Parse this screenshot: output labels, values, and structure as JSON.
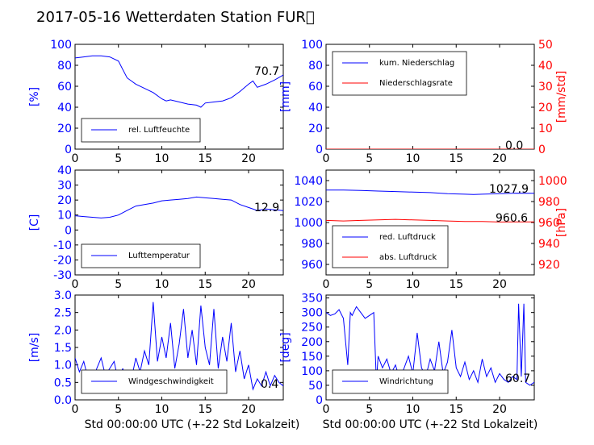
{
  "page_title": "2017-05-16 Wetterdaten Station FUR\u0000",
  "shared_xlabel": "Std 00:00:00 UTC (+-22 Std Lokalzeit)",
  "colors": {
    "blue": "#0000ff",
    "red": "#ff0000",
    "light_blue": "#8080ff"
  },
  "chart_data": [
    {
      "id": "humidity",
      "type": "line",
      "xlim": [
        0,
        24
      ],
      "ylim": [
        0,
        100
      ],
      "xticks": [
        "0",
        "5",
        "10",
        "15",
        "20"
      ],
      "yticks": [
        "0",
        "20",
        "40",
        "60",
        "80",
        "100"
      ],
      "ylabel": "[%]",
      "readout": "70.7",
      "series": [
        {
          "name": "rel. Luftfeuchte",
          "color": "#0000ff",
          "x": [
            0,
            1,
            2,
            3,
            4,
            5,
            5.5,
            6,
            6.5,
            7,
            8,
            9,
            10,
            10.5,
            11,
            12,
            13,
            14,
            14.5,
            15,
            16,
            17,
            18,
            19,
            20,
            20.5,
            21,
            22,
            23,
            24
          ],
          "y": [
            87,
            88,
            89,
            89,
            88,
            84,
            76,
            68,
            65,
            62,
            58,
            54,
            48,
            46,
            47,
            45,
            43,
            42,
            40,
            44,
            45,
            46,
            49,
            55,
            62,
            65,
            59,
            62,
            66,
            70.7
          ]
        }
      ]
    },
    {
      "id": "precip",
      "type": "line",
      "xlim": [
        0,
        24
      ],
      "ylim": [
        0,
        100
      ],
      "y2lim": [
        0,
        50
      ],
      "xticks": [
        "0",
        "5",
        "10",
        "15",
        "20"
      ],
      "yticks": [
        "0",
        "20",
        "40",
        "60",
        "80",
        "100"
      ],
      "y2ticks": [
        "0",
        "10",
        "20",
        "30",
        "40",
        "50"
      ],
      "ylabel": "[mm]",
      "y2label": "[mm/std]",
      "readout": "0.0",
      "series": [
        {
          "name": "kum. Niederschlag",
          "color": "#0000ff",
          "x": [
            0,
            24
          ],
          "y": [
            0,
            0
          ]
        },
        {
          "name": "Niederschlagsrate",
          "color": "#ff0000",
          "x": [
            0,
            24
          ],
          "y": [
            0,
            0
          ]
        }
      ]
    },
    {
      "id": "temperature",
      "type": "line",
      "xlim": [
        0,
        24
      ],
      "ylim": [
        -30,
        40
      ],
      "xticks": [
        "0",
        "5",
        "10",
        "15",
        "20"
      ],
      "yticks": [
        "-30",
        "-20",
        "-10",
        "0",
        "10",
        "20",
        "30",
        "40"
      ],
      "ylabel": "[C]",
      "readout": "12.9",
      "series": [
        {
          "name": "Lufttemperatur",
          "color": "#0000ff",
          "x": [
            0,
            1,
            2,
            3,
            4,
            5,
            6,
            7,
            8,
            9,
            10,
            11,
            12,
            13,
            14,
            15,
            16,
            17,
            18,
            19,
            20,
            21,
            22,
            23,
            24
          ],
          "y": [
            9.5,
            9,
            8.5,
            8,
            8.5,
            10,
            13,
            16,
            17,
            18,
            19.5,
            20,
            20.5,
            21,
            22,
            21.5,
            21,
            20.5,
            20,
            17,
            15,
            13,
            14,
            13.5,
            12.9
          ]
        }
      ]
    },
    {
      "id": "pressure",
      "type": "line",
      "xlim": [
        0,
        24
      ],
      "ylim": [
        950,
        1050
      ],
      "y2lim": [
        910,
        1010
      ],
      "xticks": [
        "0",
        "5",
        "10",
        "15",
        "20"
      ],
      "yticks": [
        "960",
        "980",
        "1000",
        "1020",
        "1040"
      ],
      "y2ticks": [
        "920",
        "940",
        "960",
        "980",
        "1000"
      ],
      "y2label": "[hPa]",
      "readout": "1027.9",
      "readout2": "960.6",
      "series": [
        {
          "name": "red. Luftdruck",
          "color": "#0000ff",
          "x": [
            0,
            2,
            4,
            6,
            8,
            10,
            12,
            14,
            16,
            17,
            18,
            20,
            22,
            24
          ],
          "y": [
            1031,
            1031,
            1030.5,
            1030,
            1029.5,
            1029,
            1028.5,
            1027.5,
            1027,
            1026.8,
            1027,
            1027.5,
            1028,
            1027.9
          ]
        },
        {
          "name": "abs. Luftdruck",
          "color": "#ff0000",
          "x": [
            0,
            2,
            4,
            6,
            8,
            10,
            12,
            14,
            16,
            18,
            20,
            22,
            24
          ],
          "y": [
            1002,
            1001.5,
            1002,
            1002.5,
            1003,
            1002.5,
            1002,
            1001.5,
            1001,
            1001,
            1000.5,
            1000.6,
            1000.6
          ]
        }
      ]
    },
    {
      "id": "wind_speed",
      "type": "line",
      "xlim": [
        0,
        24
      ],
      "ylim": [
        0,
        3.0
      ],
      "xticks": [
        "0",
        "5",
        "10",
        "15",
        "20"
      ],
      "yticks": [
        "0.0",
        "0.5",
        "1.0",
        "1.5",
        "2.0",
        "2.5",
        "3.0"
      ],
      "ylabel": "[m/s]",
      "xlabel": "Std 00:00:00 UTC (+-22 Std Lokalzeit)",
      "readout": "0.4",
      "series": [
        {
          "name": "Windgeschwindigkeit",
          "color": "#0000ff",
          "x": [
            0,
            0.5,
            1,
            1.5,
            2,
            2.5,
            3,
            3.5,
            4,
            4.5,
            5,
            5.5,
            6,
            6.5,
            7,
            7.5,
            8,
            8.5,
            9,
            9.5,
            10,
            10.5,
            11,
            11.5,
            12,
            12.5,
            13,
            13.5,
            14,
            14.5,
            15,
            15.5,
            16,
            16.5,
            17,
            17.5,
            18,
            18.5,
            19,
            19.5,
            20,
            20.5,
            21,
            21.5,
            22,
            22.5,
            23,
            23.5,
            24
          ],
          "y": [
            1.2,
            0.8,
            1.1,
            0.6,
            0.4,
            0.9,
            1.2,
            0.7,
            0.9,
            1.1,
            0.5,
            0.9,
            0.3,
            0.6,
            1.2,
            0.8,
            1.4,
            1.0,
            2.8,
            1.1,
            1.8,
            1.2,
            2.2,
            0.9,
            1.6,
            2.6,
            1.2,
            2.0,
            1.0,
            2.7,
            1.5,
            1.0,
            2.6,
            0.9,
            1.8,
            1.1,
            2.2,
            0.8,
            1.4,
            0.6,
            1.0,
            0.3,
            0.6,
            0.4,
            0.8,
            0.4,
            0.7,
            0.5,
            0.4
          ]
        }
      ]
    },
    {
      "id": "wind_dir",
      "type": "line",
      "xlim": [
        0,
        24
      ],
      "ylim": [
        0,
        360
      ],
      "xticks": [
        "0",
        "5",
        "10",
        "15",
        "20"
      ],
      "yticks": [
        "0",
        "50",
        "100",
        "150",
        "200",
        "250",
        "300",
        "350"
      ],
      "ylabel": "[deg]",
      "xlabel": "Std 00:00:00 UTC (+-22 Std Lokalzeit)",
      "readout": "60.7",
      "series": [
        {
          "name": "Windrichtung",
          "color": "#0000ff",
          "x": [
            0,
            0.5,
            1,
            1.5,
            2,
            2.5,
            2.8,
            3,
            3.5,
            4,
            4.5,
            5,
            5.5,
            5.8,
            6,
            6.5,
            7,
            7.5,
            8,
            8.5,
            9,
            9.5,
            10,
            10.5,
            11,
            11.5,
            12,
            12.5,
            13,
            13.5,
            14,
            14.5,
            15,
            15.5,
            16,
            16.5,
            17,
            17.5,
            18,
            18.5,
            19,
            19.5,
            20,
            20.5,
            21,
            21.5,
            22,
            22.2,
            22.5,
            22.8,
            23,
            23.5,
            24
          ],
          "y": [
            300,
            290,
            295,
            310,
            280,
            120,
            300,
            290,
            320,
            300,
            280,
            290,
            300,
            60,
            150,
            110,
            140,
            90,
            120,
            70,
            110,
            150,
            90,
            230,
            110,
            80,
            140,
            100,
            200,
            90,
            130,
            240,
            110,
            80,
            130,
            70,
            100,
            60,
            140,
            80,
            110,
            60,
            90,
            70,
            60,
            80,
            70,
            330,
            80,
            330,
            60,
            50,
            60.7
          ]
        }
      ]
    }
  ]
}
